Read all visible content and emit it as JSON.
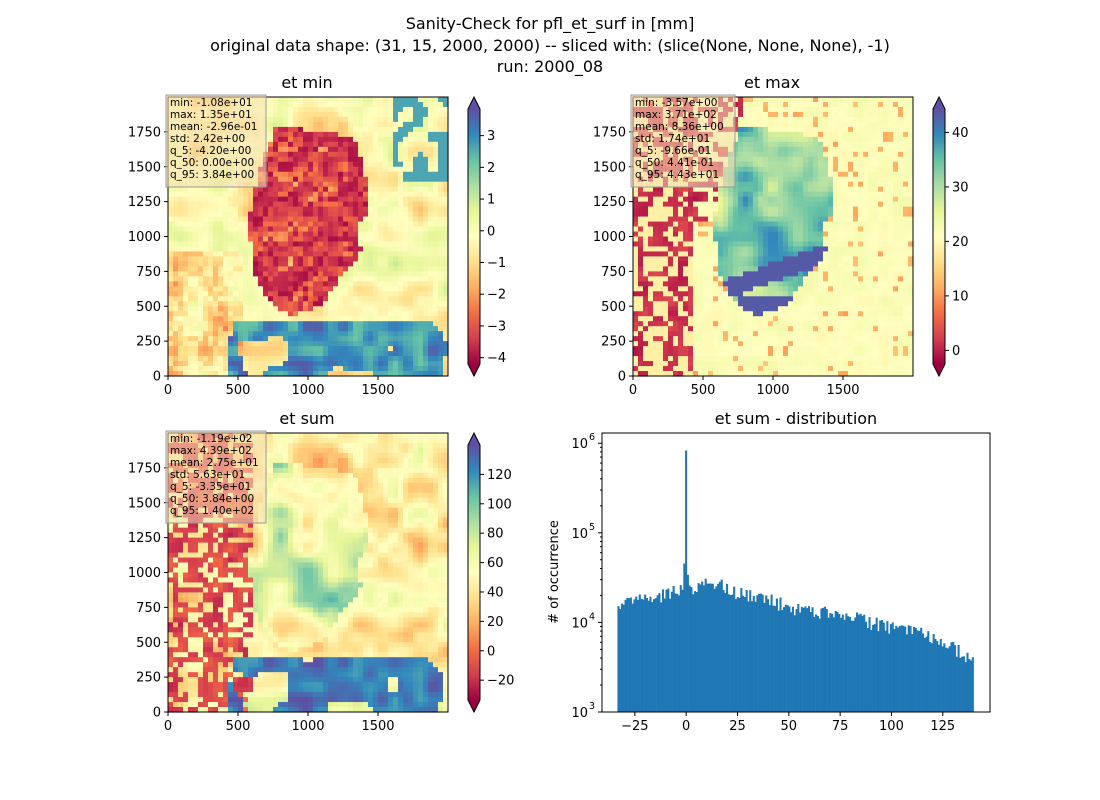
{
  "figure": {
    "title_lines": [
      "Sanity-Check for pfl_et_surf in [mm]",
      "original data shape: (31, 15, 2000, 2000) -- sliced with: (slice(None, None, None), -1)",
      "run: 2000_08"
    ]
  },
  "chart_data": [
    {
      "type": "heatmap",
      "title": "et min",
      "colormap": "Spectral",
      "xlim": [
        0,
        2000
      ],
      "ylim": [
        0,
        2000
      ],
      "xticks": [
        "0",
        "500",
        "1000",
        "1500"
      ],
      "yticks": [
        "0",
        "250",
        "500",
        "750",
        "1000",
        "1250",
        "1500",
        "1750"
      ],
      "colorbar": {
        "min": -4.2,
        "max": 3.84,
        "extend": "both",
        "ticks": [
          -4,
          -3,
          -2,
          -1,
          0,
          1,
          2,
          3
        ],
        "tick_labels": [
          "−4",
          "−3",
          "−2",
          "−1",
          "0",
          "1",
          "2",
          "3"
        ]
      },
      "stats": [
        "min: -1.08e+01",
        "max: 1.35e+01",
        "mean: -2.96e-01",
        "std: 2.42e+00",
        "q_5: -4.20e+00",
        "q_50: 0.00e+00",
        "q_95: 3.84e+00"
      ]
    },
    {
      "type": "heatmap",
      "title": "et max",
      "colormap": "Spectral",
      "xlim": [
        0,
        2000
      ],
      "ylim": [
        0,
        2000
      ],
      "xticks": [
        "0",
        "500",
        "1000",
        "1500"
      ],
      "yticks": [
        "0",
        "250",
        "500",
        "750",
        "1000",
        "1250",
        "1500",
        "1750"
      ],
      "colorbar": {
        "min": -2.5,
        "max": 44.3,
        "extend": "both",
        "ticks": [
          0,
          10,
          20,
          30,
          40
        ],
        "tick_labels": [
          "0",
          "10",
          "20",
          "30",
          "40"
        ]
      },
      "stats": [
        "min: -3.57e+00",
        "max: 3.71e+02",
        "mean: 8.36e+00",
        "std: 1.74e+01",
        "q_5: -9.66e-01",
        "q_50: 4.41e-01",
        "q_95: 4.43e+01"
      ]
    },
    {
      "type": "heatmap",
      "title": "et sum",
      "colormap": "Spectral",
      "xlim": [
        0,
        2000
      ],
      "ylim": [
        0,
        2000
      ],
      "xticks": [
        "0",
        "500",
        "1000",
        "1500"
      ],
      "yticks": [
        "0",
        "250",
        "500",
        "750",
        "1000",
        "1250",
        "1500",
        "1750"
      ],
      "colorbar": {
        "min": -33.5,
        "max": 140,
        "extend": "both",
        "ticks": [
          -20,
          0,
          20,
          40,
          60,
          80,
          100,
          120
        ],
        "tick_labels": [
          "−20",
          "0",
          "20",
          "40",
          "60",
          "80",
          "100",
          "120"
        ]
      },
      "stats": [
        "min: -1.19e+02",
        "max: 4.39e+02",
        "mean: 2.75e+01",
        "std: 5.63e+01",
        "q_5: -3.35e+01",
        "q_50: 3.84e+00",
        "q_95: 1.40e+02"
      ]
    },
    {
      "type": "bar",
      "subtype": "histogram",
      "title": "et sum - distribution",
      "xlabel": "",
      "ylabel": "# of occurrence",
      "xlim": [
        -41,
        148
      ],
      "yscale": "log",
      "ylim": [
        1000,
        1300000
      ],
      "xticks": [
        -25,
        0,
        25,
        50,
        75,
        100,
        125
      ],
      "xtick_labels": [
        "−25",
        "0",
        "25",
        "50",
        "75",
        "100",
        "125"
      ],
      "yticks": [
        1000,
        10000,
        100000,
        1000000
      ],
      "ytick_labels": [
        "10",
        "10",
        "10",
        "10"
      ],
      "ytick_exponents": [
        "3",
        "4",
        "5",
        "6"
      ],
      "bar_color": "#1f77b4",
      "bins": {
        "start": -33.5,
        "width": 0.8675,
        "count": 200
      },
      "profile": [
        [
          -33.5,
          13000
        ],
        [
          -30,
          16000
        ],
        [
          -25,
          17500
        ],
        [
          -20,
          18500
        ],
        [
          -15,
          19500
        ],
        [
          -10,
          21000
        ],
        [
          -5,
          22500
        ],
        [
          -2,
          25000
        ],
        [
          -1,
          40000
        ],
        [
          -0.4,
          60000
        ],
        [
          0,
          830000
        ],
        [
          0.5,
          45000
        ],
        [
          1,
          30000
        ],
        [
          3,
          24000
        ],
        [
          8,
          28000
        ],
        [
          12,
          29000
        ],
        [
          20,
          25000
        ],
        [
          25,
          21000
        ],
        [
          30,
          20000
        ],
        [
          40,
          18000
        ],
        [
          50,
          15000
        ],
        [
          60,
          13500
        ],
        [
          70,
          12500
        ],
        [
          80,
          11500
        ],
        [
          90,
          10000
        ],
        [
          100,
          9000
        ],
        [
          110,
          8000
        ],
        [
          120,
          7000
        ],
        [
          125,
          6200
        ],
        [
          130,
          5500
        ],
        [
          135,
          4200
        ],
        [
          140,
          3800
        ]
      ]
    }
  ]
}
